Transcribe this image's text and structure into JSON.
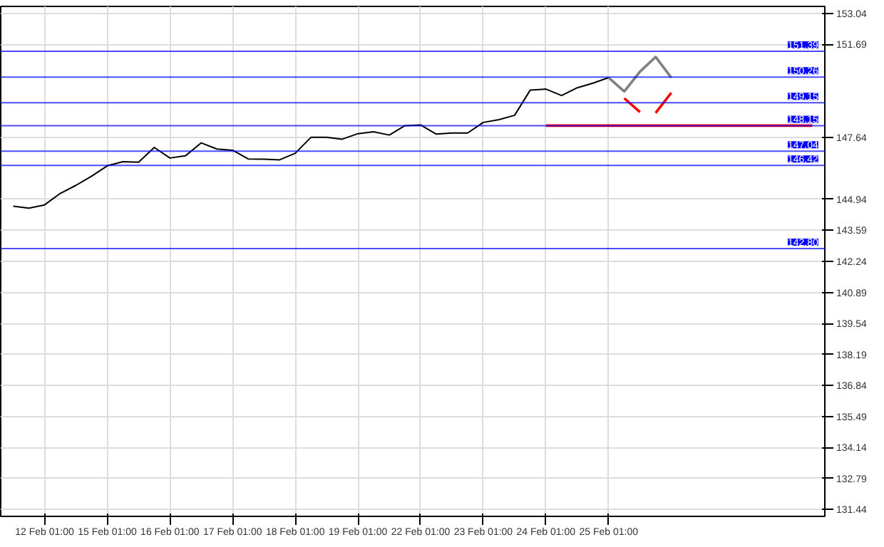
{
  "chart_data": {
    "type": "line",
    "categories": [
      null,
      null,
      "12 Feb 01:00",
      null,
      null,
      null,
      "15 Feb 01:00",
      null,
      null,
      null,
      "16 Feb 01:00",
      null,
      null,
      null,
      "17 Feb 01:00",
      null,
      null,
      null,
      "18 Feb 01:00",
      null,
      null,
      null,
      "19 Feb 01:00",
      null,
      null,
      null,
      "22 Feb 01:00",
      null,
      null,
      null,
      "23 Feb 01:00",
      null,
      null,
      null,
      "24 Feb 01:00",
      null,
      null,
      null,
      "25 Feb 01:00",
      null,
      null,
      null,
      null,
      null,
      null,
      null,
      null,
      null,
      null,
      null,
      null,
      null
    ],
    "ylim": [
      131.14,
      153.34
    ],
    "yticks": [
      153.04,
      151.69,
      147.64,
      144.94,
      143.59,
      142.24,
      140.89,
      139.54,
      138.19,
      136.84,
      135.49,
      134.14,
      132.79,
      131.44
    ],
    "grid": true,
    "line_style": "solid",
    "marker": "none",
    "series": [
      {
        "color": "#000000",
        "values": [
          144.64,
          144.56,
          144.7,
          145.2,
          145.55,
          145.95,
          146.4,
          146.58,
          146.56,
          147.2,
          146.74,
          146.84,
          147.4,
          147.13,
          147.08,
          146.7,
          146.69,
          146.66,
          146.95,
          147.64,
          147.64,
          147.56,
          147.8,
          147.88,
          147.74,
          148.15,
          148.18,
          147.78,
          147.83,
          147.83,
          148.29,
          148.41,
          148.6,
          149.7,
          149.74,
          149.46,
          149.8,
          150.0,
          150.24,
          null,
          null,
          null,
          null,
          null,
          null,
          null,
          null,
          null,
          null,
          null,
          null,
          null
        ]
      },
      {
        "color": "#808080",
        "values": [
          null,
          null,
          null,
          null,
          null,
          null,
          null,
          null,
          null,
          null,
          null,
          null,
          null,
          null,
          null,
          null,
          null,
          null,
          null,
          null,
          null,
          null,
          null,
          null,
          null,
          null,
          null,
          null,
          null,
          null,
          null,
          null,
          null,
          null,
          null,
          null,
          null,
          null,
          150.24,
          149.64,
          150.5,
          151.14,
          150.24,
          null,
          null,
          null,
          null,
          null,
          null,
          null,
          null,
          null
        ]
      },
      {
        "color": "#ff0000",
        "values": [
          null,
          null,
          null,
          null,
          null,
          null,
          null,
          null,
          null,
          null,
          null,
          null,
          null,
          null,
          null,
          null,
          null,
          null,
          null,
          null,
          null,
          null,
          null,
          null,
          null,
          null,
          null,
          null,
          null,
          null,
          null,
          null,
          null,
          null,
          148.15,
          148.15,
          148.15,
          148.15,
          148.15,
          148.15,
          148.15,
          148.15,
          148.15,
          148.15,
          148.15,
          148.15,
          148.15,
          148.15,
          148.15,
          148.15,
          148.15,
          148.15
        ]
      },
      {
        "color": "#ff0000",
        "values": [
          null,
          null,
          null,
          null,
          null,
          null,
          null,
          null,
          null,
          null,
          null,
          null,
          null,
          null,
          null,
          null,
          null,
          null,
          null,
          null,
          null,
          null,
          null,
          null,
          null,
          null,
          null,
          null,
          null,
          null,
          null,
          null,
          null,
          null,
          null,
          null,
          null,
          null,
          null,
          149.34,
          148.74,
          null,
          null,
          null,
          null,
          null,
          null,
          null,
          null,
          null,
          null,
          null
        ]
      },
      {
        "color": "#ff0000",
        "values": [
          null,
          null,
          null,
          null,
          null,
          null,
          null,
          null,
          null,
          null,
          null,
          null,
          null,
          null,
          null,
          null,
          null,
          null,
          null,
          null,
          null,
          null,
          null,
          null,
          null,
          null,
          null,
          null,
          null,
          null,
          null,
          null,
          null,
          null,
          null,
          null,
          null,
          null,
          null,
          null,
          null,
          148.7,
          149.58,
          null,
          null,
          null,
          null,
          null,
          null,
          null,
          null,
          null
        ]
      }
    ],
    "ref_lines": [
      {
        "axis": "y",
        "value": 151.39,
        "label": "151.39",
        "color": "#0000ff"
      },
      {
        "axis": "y",
        "value": 150.26,
        "label": "150.26",
        "color": "#0000ff"
      },
      {
        "axis": "y",
        "value": 149.15,
        "label": "149.15",
        "color": "#0000ff"
      },
      {
        "axis": "y",
        "value": 148.15,
        "label": "148.15",
        "color": "#0000ff"
      },
      {
        "axis": "y",
        "value": 147.04,
        "label": "147.04",
        "color": "#0000ff"
      },
      {
        "axis": "y",
        "value": 146.42,
        "label": "146.42",
        "color": "#0000ff"
      },
      {
        "axis": "y",
        "value": 142.8,
        "label": "142.80",
        "color": "#0000ff"
      }
    ]
  }
}
